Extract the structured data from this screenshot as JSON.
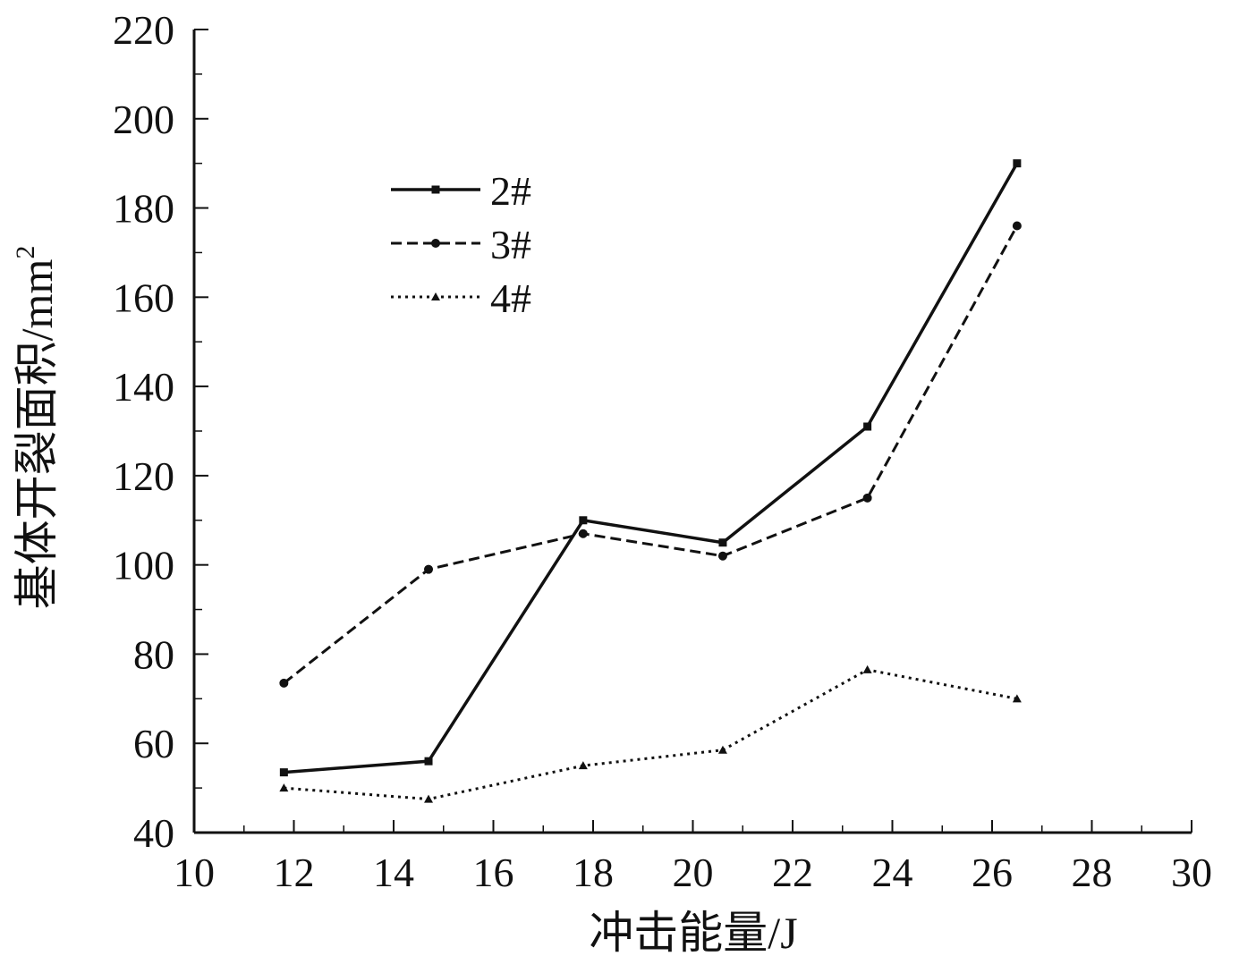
{
  "chart_data": {
    "type": "line",
    "title": "",
    "xlabel": "冲击能量/J",
    "ylabel": "基体开裂面积/mm",
    "ylabel_superscript": "2",
    "xlim": [
      10,
      30
    ],
    "ylim": [
      40,
      220
    ],
    "xticks": [
      "10",
      "12",
      "14",
      "16",
      "18",
      "20",
      "22",
      "24",
      "26",
      "28",
      "30"
    ],
    "yticks": [
      "40",
      "60",
      "80",
      "100",
      "120",
      "140",
      "160",
      "180",
      "200",
      "220"
    ],
    "grid": false,
    "legend_position": "upper-left",
    "series": [
      {
        "name": "2#",
        "line_style": "solid",
        "color": "#111111",
        "x": [
          11.8,
          14.7,
          17.8,
          20.6,
          23.5,
          26.5
        ],
        "y": [
          53.5,
          56,
          110,
          105,
          131,
          190
        ]
      },
      {
        "name": "3#",
        "line_style": "dashed",
        "color": "#111111",
        "x": [
          11.8,
          14.7,
          17.8,
          20.6,
          23.5,
          26.5
        ],
        "y": [
          73.5,
          99,
          107,
          102,
          115,
          176
        ]
      },
      {
        "name": "4#",
        "line_style": "dotted",
        "color": "#111111",
        "x": [
          11.8,
          14.7,
          17.8,
          20.6,
          23.5,
          26.5
        ],
        "y": [
          50,
          47.5,
          55,
          58.5,
          76.5,
          70
        ]
      }
    ]
  }
}
